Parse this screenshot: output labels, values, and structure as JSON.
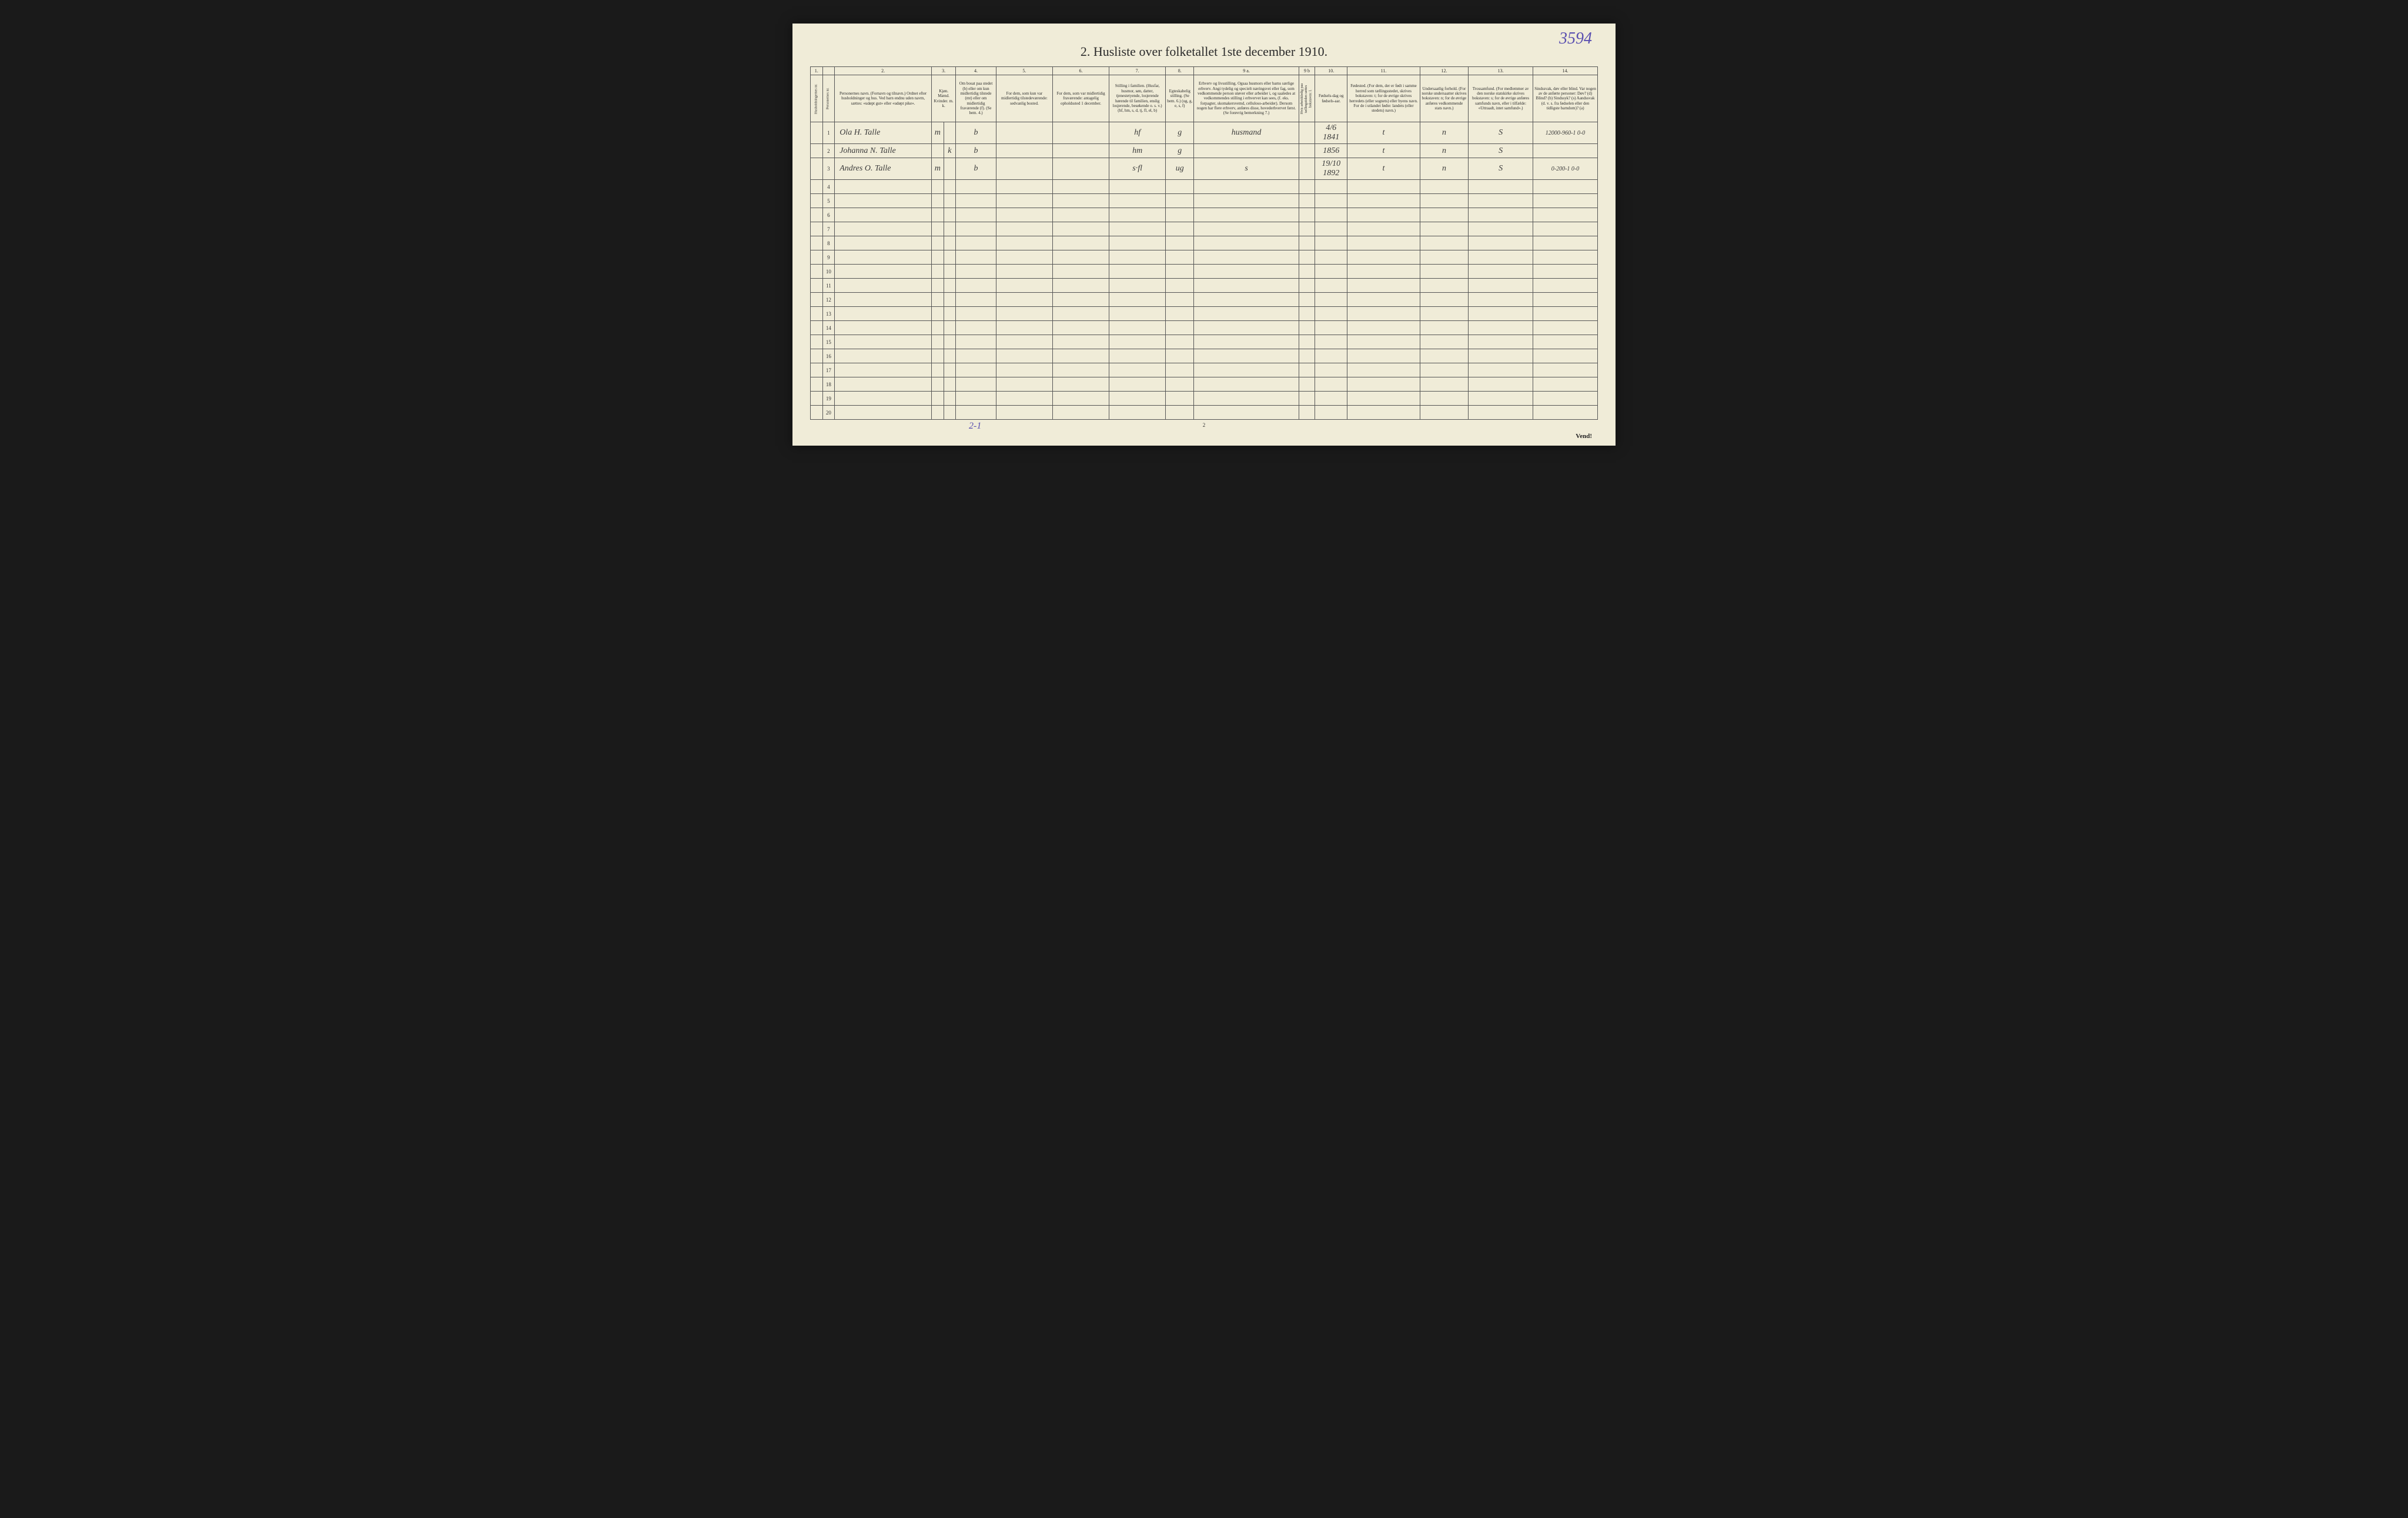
{
  "annotation_top_right": "3594",
  "title": "2.  Husliste over folketallet 1ste december 1910.",
  "column_numbers": [
    "1.",
    "",
    "2.",
    "3.",
    "",
    "4.",
    "5.",
    "6.",
    "7.",
    "8.",
    "9 a.",
    "9 b",
    "10.",
    "11.",
    "12.",
    "13.",
    "14."
  ],
  "headers": {
    "c1": "Husholdningernes nr.",
    "c2": "Personernes nr.",
    "c3": "Personernes navn.\n(Fornavn og tilnavn.)\nOrdnet efter husholdninger og hus.\nVed barn endnu uden navm, sættes: «udøpt gut» eller «udøpt pike».",
    "c4": "Kjøn.\nMænd. Kvinder.\nm.  k.",
    "c5": "Om bosat paa stedet (b) eller om kun midlertidig tilstede (mt) eller om midlertidig fraværende (f).\n(Se bem. 4.)",
    "c6": "For dem, som kun var midlertidig tilstedeværende:\nsedvanlig bosted.",
    "c7": "For dem, som var midlertidig fraværende:\nantagelig opholdssted 1 december.",
    "c8": "Stilling i familien.\n(Husfar, husmor, søn, datter, tjenestetyende, losjerende hørende til familien, enslig losjerende, besøkende o. s. v.)\n(hf, hm, s, d, tj, fl, el, b)",
    "c9": "Egteskabelig stilling.\n(Se bem. 6.)\n(ug, g, e, s, f)",
    "c10": "Erhverv og livsstilling.\nOgsaa husmors eller barns særlige erhverv. Angi tydelig og specielt næringsvei eller fag, som vedkommende person utøver eller arbeider i, og saaledes at vedkommendes stilling i erhvervet kan sees, (f. eks. forpagter, skomakersvemd, celluloso-arbeider). Dersom nogen har flere erhverv, anføres disse, hovederhvervet først.\n(Se forøvrig bemerkning 7.)",
    "c11": "Hvis arbeidsledig paa tællingstiden sættes bokstaven: l.",
    "c12": "Fødsels-dag og fødsels-aar.",
    "c13": "Fødested.\n(For dem, der er født i samme herred som tællingsstedet, skrives bokstaven: t; for de øvrige skrives herredets (eller sognets) eller byens navn. For de i utlandet fødte: landets (eller stedets) navn.)",
    "c14": "Undersaatlig forhold.\n(For norske undersaatter skrives bokstaven: n; for de øvrige anføres vedkommende stats navn.)",
    "c15": "Trossamfund.\n(For medlemmer av den norske statskirke skrives bokstaven: s; for de øvrige anføres samfunds navn, eller i tilfælde: «Uttraadt, intet samfund».)",
    "c16": "Sindssvak, døv eller blind.\nVar nogen av de anførte personer:\nDøv? (d)\nBlind? (b)\nSindssyk? (s)\nAandssvak (d. v. s. fra fødselen eller den tidligste barndom)? (a)"
  },
  "rows": [
    {
      "num": "1",
      "name": "Ola H. Talle",
      "sex": "m",
      "resident": "b",
      "family_pos": "hf",
      "marital": "g",
      "occupation": "husmand",
      "birth": "4/6 1841",
      "birthplace": "t",
      "nationality": "n",
      "faith": "S",
      "col17": "12000-960-1  0-0"
    },
    {
      "num": "2",
      "name": "Johanna N. Talle",
      "sex": "k",
      "resident": "b",
      "family_pos": "hm",
      "marital": "g",
      "occupation": "",
      "birth": "1856",
      "birthplace": "t",
      "nationality": "n",
      "faith": "S",
      "col17": ""
    },
    {
      "num": "3",
      "name": "Andres O. Talle",
      "sex": "m",
      "resident": "b",
      "family_pos": "s·fl",
      "marital": "ug",
      "occupation": "s",
      "birth": "19/10 1892",
      "birthplace": "t",
      "nationality": "n",
      "faith": "S",
      "col17": "0-200-1  0-0"
    }
  ],
  "empty_rows": [
    "4",
    "5",
    "6",
    "7",
    "8",
    "9",
    "10",
    "11",
    "12",
    "13",
    "14",
    "15",
    "16",
    "17",
    "18",
    "19",
    "20"
  ],
  "footer_annotation": "2-1",
  "page_bottom_number": "2",
  "vend": "Vend!"
}
